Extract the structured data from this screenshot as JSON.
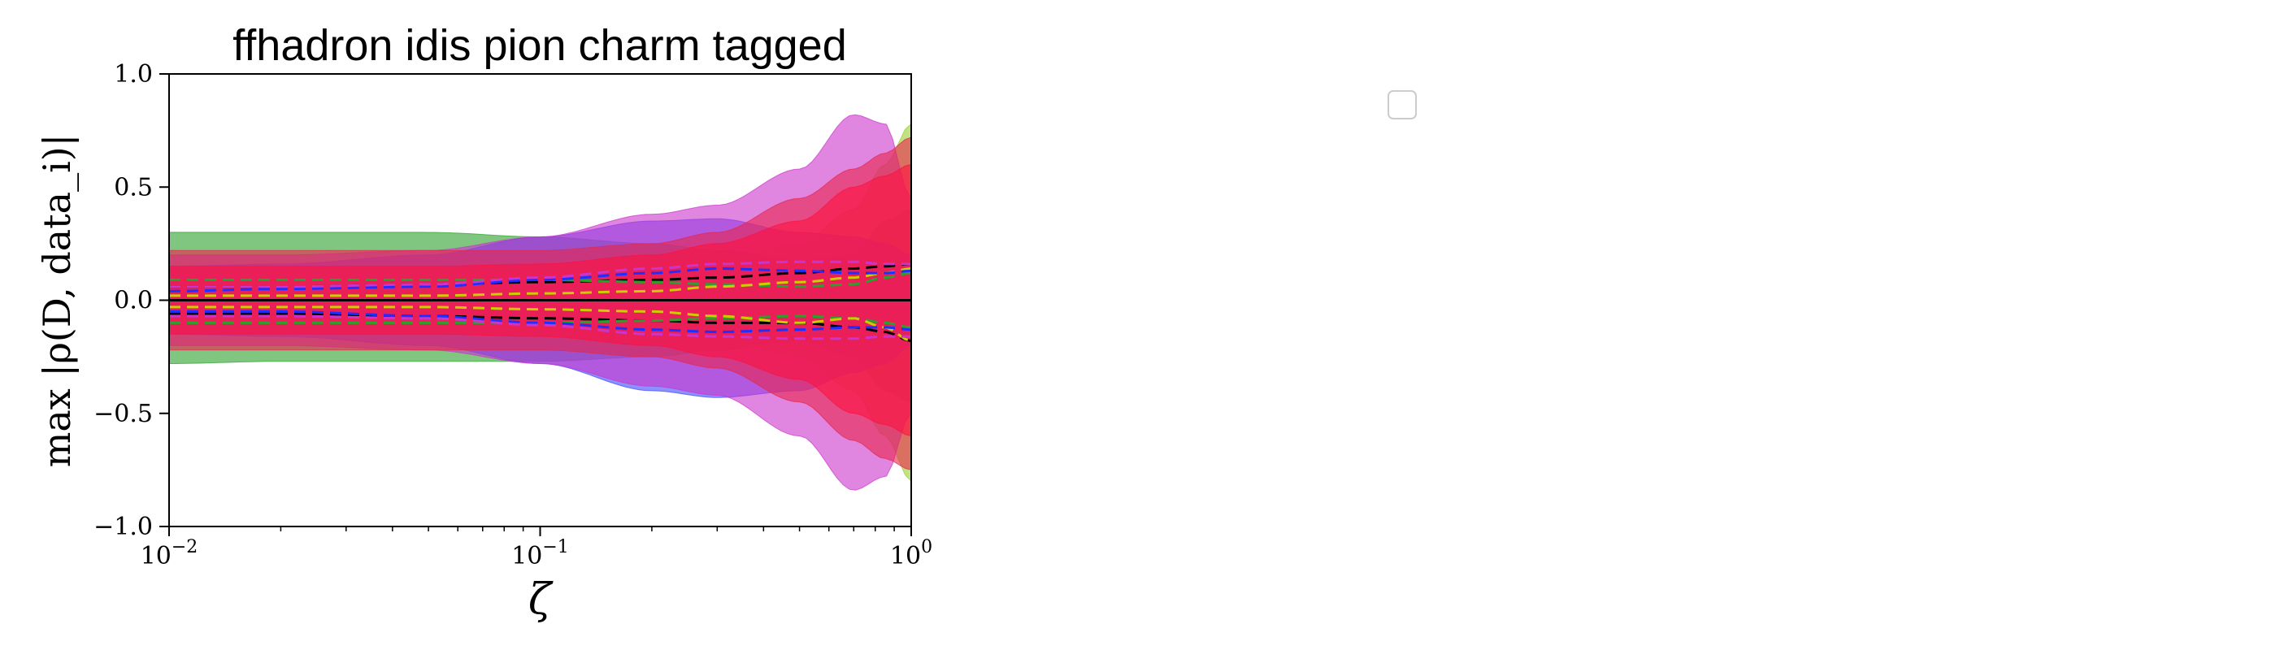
{
  "chart_data": {
    "type": "area",
    "title": "ffhadron idis pion charm tagged",
    "xlabel": "ζ",
    "ylabel": "max |ρ(D, data_i)|",
    "xscale": "log",
    "xlim": [
      0.01,
      1.0
    ],
    "ylim": [
      -1.0,
      1.0
    ],
    "x_ticks": [
      {
        "value": 0.01,
        "label": "10",
        "exp": "−2"
      },
      {
        "value": 0.1,
        "label": "10",
        "exp": "−1"
      },
      {
        "value": 1.0,
        "label": "10",
        "exp": "0"
      }
    ],
    "y_ticks": [
      {
        "value": 1.0,
        "label": "1.0"
      },
      {
        "value": 0.5,
        "label": "0.5"
      },
      {
        "value": 0.0,
        "label": "0.0"
      },
      {
        "value": -0.5,
        "label": "−0.5"
      },
      {
        "value": -1.0,
        "label": "−1.0"
      }
    ],
    "grid": false,
    "legend": {
      "placement": "upper-right",
      "entries": []
    },
    "zero_line": 0.0,
    "x": [
      0.01,
      0.02,
      0.05,
      0.1,
      0.2,
      0.3,
      0.5,
      0.7,
      0.85,
      1.0
    ],
    "bands": [
      {
        "color": "#2ca02c",
        "upper": [
          0.3,
          0.3,
          0.3,
          0.28,
          0.25,
          0.22,
          0.18,
          0.2,
          0.35,
          0.4
        ],
        "lower": [
          -0.28,
          -0.27,
          -0.27,
          -0.27,
          -0.25,
          -0.22,
          -0.18,
          -0.25,
          -0.4,
          -0.45
        ]
      },
      {
        "color": "#9acd32",
        "upper": [
          0.15,
          0.15,
          0.16,
          0.16,
          0.16,
          0.17,
          0.25,
          0.4,
          0.6,
          0.78
        ],
        "lower": [
          -0.15,
          -0.15,
          -0.16,
          -0.16,
          -0.16,
          -0.17,
          -0.25,
          -0.4,
          -0.6,
          -0.8
        ]
      },
      {
        "color": "#3f48ff",
        "upper": [
          0.15,
          0.16,
          0.2,
          0.28,
          0.35,
          0.36,
          0.3,
          0.28,
          0.25,
          0.2
        ],
        "lower": [
          -0.15,
          -0.16,
          -0.2,
          -0.28,
          -0.4,
          -0.43,
          -0.4,
          -0.32,
          -0.28,
          -0.2
        ]
      },
      {
        "color": "#cc33cc",
        "upper": [
          0.2,
          0.2,
          0.22,
          0.28,
          0.38,
          0.42,
          0.58,
          0.82,
          0.78,
          0.45
        ],
        "lower": [
          -0.2,
          -0.2,
          -0.22,
          -0.28,
          -0.38,
          -0.42,
          -0.6,
          -0.84,
          -0.78,
          -0.5
        ]
      },
      {
        "color": "#e8254a",
        "upper": [
          0.22,
          0.22,
          0.22,
          0.22,
          0.25,
          0.3,
          0.45,
          0.58,
          0.65,
          0.72
        ],
        "lower": [
          -0.22,
          -0.22,
          -0.22,
          -0.22,
          -0.25,
          -0.3,
          -0.45,
          -0.62,
          -0.7,
          -0.75
        ]
      },
      {
        "color": "#ff1040",
        "upper": [
          0.15,
          0.15,
          0.15,
          0.16,
          0.2,
          0.25,
          0.35,
          0.5,
          0.55,
          0.6
        ],
        "lower": [
          -0.15,
          -0.15,
          -0.15,
          -0.16,
          -0.2,
          -0.25,
          -0.35,
          -0.5,
          -0.55,
          -0.6
        ]
      }
    ],
    "dashed_lines": [
      {
        "color": "#000000",
        "y": [
          0.06,
          0.06,
          0.07,
          0.08,
          0.09,
          0.1,
          0.12,
          0.14,
          0.15,
          0.16
        ]
      },
      {
        "color": "#000000",
        "y": [
          -0.06,
          -0.06,
          -0.07,
          -0.08,
          -0.09,
          -0.1,
          -0.1,
          -0.12,
          -0.14,
          -0.18
        ]
      },
      {
        "color": "#2ca02c",
        "y": [
          0.09,
          0.09,
          0.09,
          0.09,
          0.08,
          0.07,
          0.06,
          0.07,
          0.1,
          0.12
        ]
      },
      {
        "color": "#2ca02c",
        "y": [
          -0.1,
          -0.1,
          -0.1,
          -0.1,
          -0.09,
          -0.08,
          -0.07,
          -0.08,
          -0.1,
          -0.12
        ]
      },
      {
        "color": "#cccc00",
        "y": [
          0.02,
          0.02,
          0.02,
          0.03,
          0.04,
          0.06,
          0.08,
          0.1,
          0.12,
          0.14
        ]
      },
      {
        "color": "#cccc00",
        "y": [
          -0.03,
          -0.03,
          -0.03,
          -0.04,
          -0.05,
          -0.07,
          -0.1,
          -0.08,
          -0.12,
          -0.18
        ]
      },
      {
        "color": "#1f2fff",
        "y": [
          0.04,
          0.05,
          0.06,
          0.09,
          0.12,
          0.14,
          0.13,
          0.12,
          0.12,
          0.13
        ]
      },
      {
        "color": "#1f2fff",
        "y": [
          -0.05,
          -0.05,
          -0.07,
          -0.1,
          -0.13,
          -0.14,
          -0.13,
          -0.12,
          -0.12,
          -0.13
        ]
      },
      {
        "color": "#cc33cc",
        "y": [
          0.06,
          0.06,
          0.07,
          0.1,
          0.14,
          0.16,
          0.17,
          0.17,
          0.16,
          0.16
        ]
      },
      {
        "color": "#cc33cc",
        "y": [
          -0.07,
          -0.07,
          -0.08,
          -0.11,
          -0.15,
          -0.16,
          -0.17,
          -0.17,
          -0.16,
          -0.16
        ]
      }
    ]
  }
}
